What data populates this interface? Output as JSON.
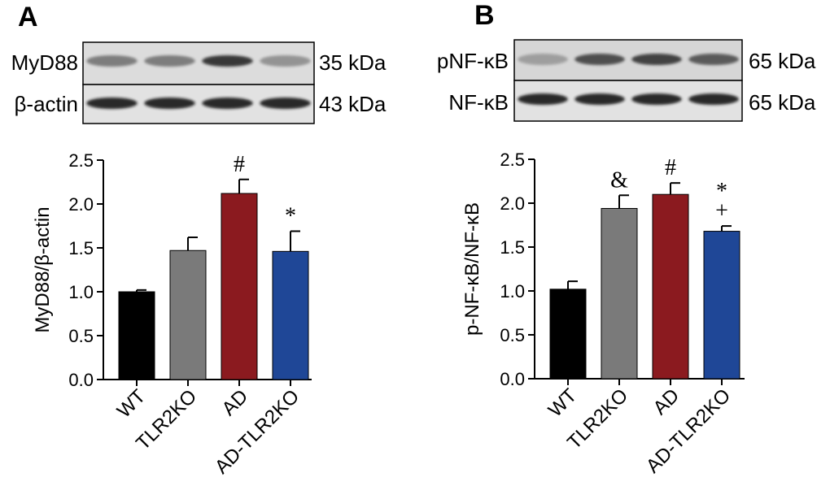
{
  "panels": [
    {
      "letter": "A",
      "blot": {
        "rows": [
          {
            "protein": "MyD88",
            "size": "35 kDa",
            "intensity": [
              0.55,
              0.55,
              0.85,
              0.45
            ]
          },
          {
            "protein": "β-actin",
            "size": "43 kDa",
            "intensity": [
              0.9,
              0.9,
              0.9,
              0.9
            ]
          }
        ]
      }
    },
    {
      "letter": "B",
      "blot": {
        "rows": [
          {
            "protein": "pNF-κB",
            "size": "65 kDa",
            "intensity": [
              0.4,
              0.75,
              0.8,
              0.7
            ]
          },
          {
            "protein": "NF-κB",
            "size": "65 kDa",
            "intensity": [
              0.9,
              0.9,
              0.9,
              0.9
            ]
          }
        ]
      }
    }
  ],
  "chart_data": [
    {
      "type": "bar",
      "title": "",
      "xlabel": "",
      "ylabel": "MyD88/β-actin",
      "ylim": [
        0,
        2.5
      ],
      "yticks": [
        "0.0",
        "0.5",
        "1.0",
        "1.5",
        "2.0",
        "2.5"
      ],
      "categories": [
        "WT",
        "TLR2KO",
        "AD",
        "AD-TLR2KO"
      ],
      "values": [
        1.0,
        1.47,
        2.12,
        1.46
      ],
      "errors": [
        0.02,
        0.15,
        0.16,
        0.23
      ],
      "colors": [
        "#000000",
        "#7a7a7a",
        "#8b1a1f",
        "#1f4797"
      ],
      "annotations": [
        "",
        "",
        "#",
        "*"
      ],
      "grid": false
    },
    {
      "type": "bar",
      "title": "",
      "xlabel": "",
      "ylabel": "p-NF-κB/NF-κB",
      "ylim": [
        0,
        2.5
      ],
      "yticks": [
        "0.0",
        "0.5",
        "1.0",
        "1.5",
        "2.0",
        "2.5"
      ],
      "categories": [
        "WT",
        "TLR2KO",
        "AD",
        "AD-TLR2KO"
      ],
      "values": [
        1.02,
        1.94,
        2.1,
        1.68
      ],
      "errors": [
        0.09,
        0.15,
        0.13,
        0.06
      ],
      "colors": [
        "#000000",
        "#7a7a7a",
        "#8b1a1f",
        "#1f4797"
      ],
      "annotations": [
        "",
        "&",
        "#",
        "*\n+"
      ],
      "grid": false
    }
  ]
}
